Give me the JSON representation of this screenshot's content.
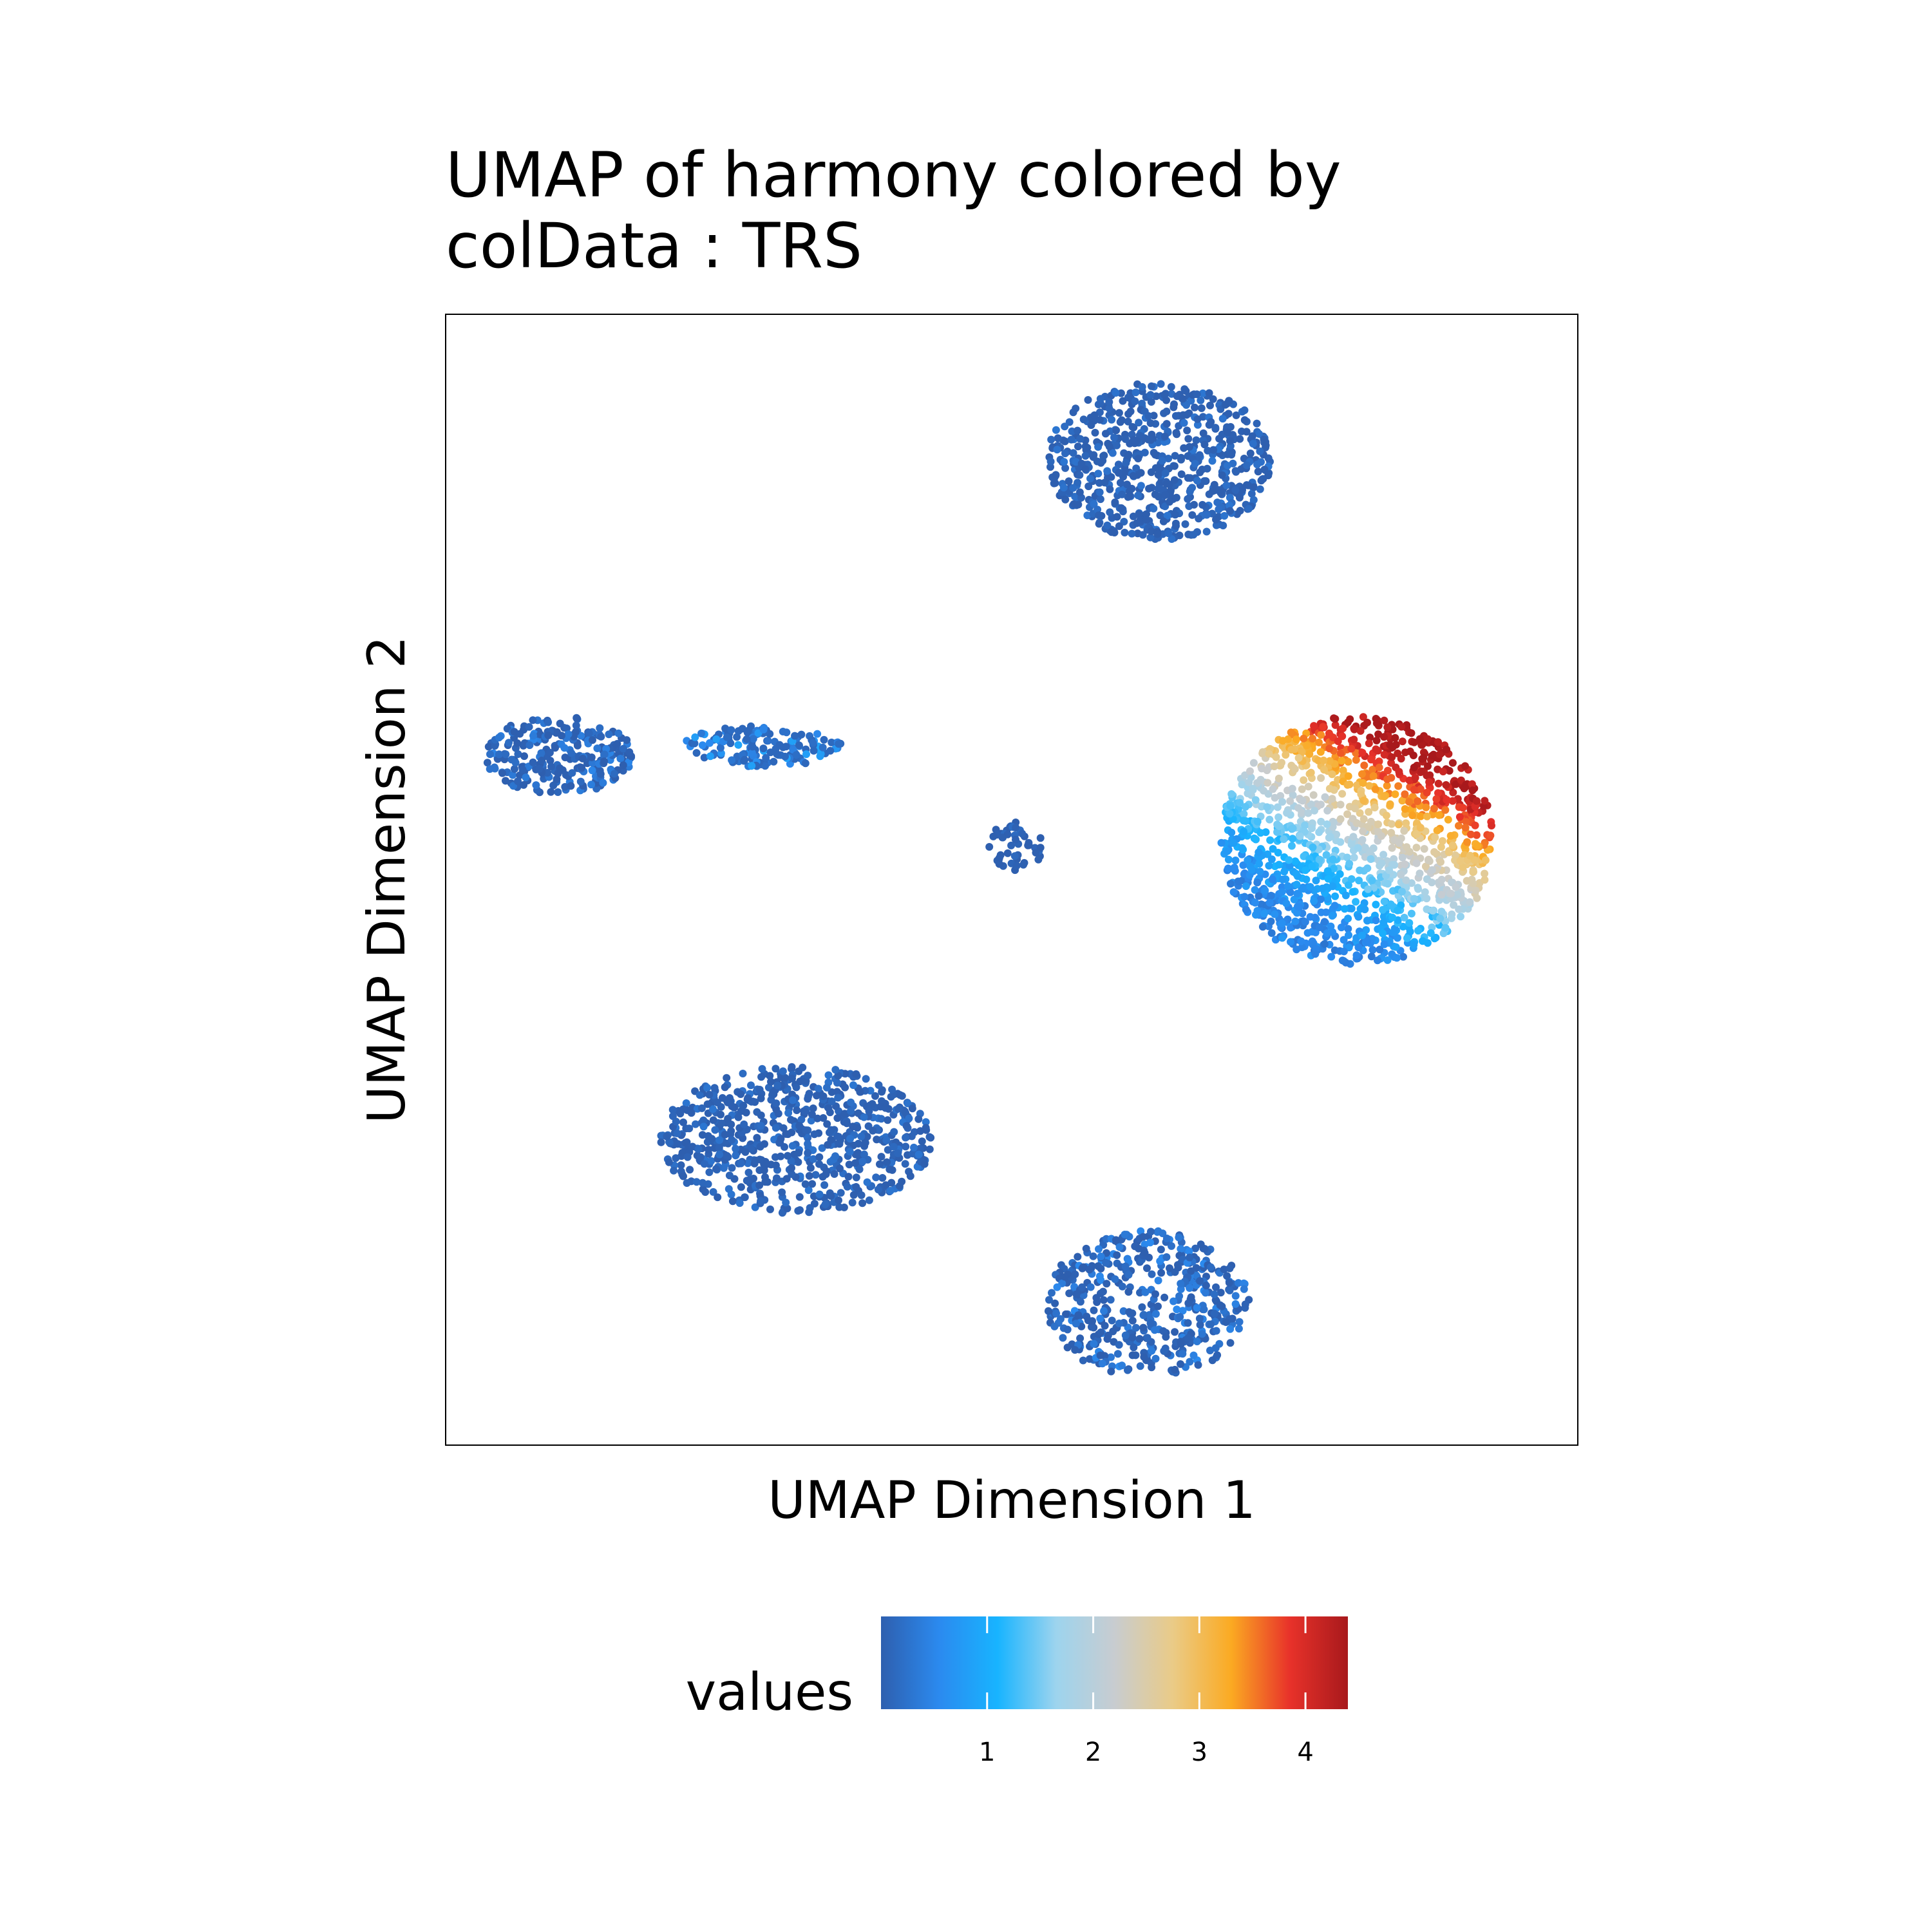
{
  "chart_data": {
    "type": "scatter",
    "title_lines": [
      "UMAP of harmony  colored by",
      "colData :  TRS"
    ],
    "xlabel": "UMAP Dimension 1",
    "ylabel": "UMAP Dimension 2",
    "xlim": [
      0,
      100
    ],
    "ylim": [
      0,
      100
    ],
    "grid": false,
    "axis_ticks": false,
    "legend": {
      "title": "values",
      "position": "bottom",
      "range": [
        0,
        4.4
      ],
      "ticks": [
        1,
        2,
        3,
        4
      ],
      "tick_labels": [
        "1",
        "2",
        "3",
        "4"
      ],
      "palette": [
        "#2E5FAF",
        "#2B8AEF",
        "#18B4FF",
        "#9DD4EE",
        "#C8CCD0",
        "#EACB87",
        "#FBAA22",
        "#E8322A",
        "#A8191C"
      ]
    },
    "clusters": [
      {
        "name": "top",
        "center": [
          63,
          87
        ],
        "radius": [
          10,
          7
        ],
        "value_range": [
          0,
          0.3
        ],
        "point_count": 650
      },
      {
        "name": "left",
        "center": [
          10,
          61
        ],
        "radius": [
          6.5,
          3.5
        ],
        "value_range": [
          0,
          0.5
        ],
        "point_count": 260
      },
      {
        "name": "left-tail",
        "center": [
          28,
          61.8
        ],
        "radius": [
          7,
          1.8
        ],
        "value_range": [
          0.1,
          0.9
        ],
        "point_count": 160
      },
      {
        "name": "small",
        "center": [
          50.5,
          53
        ],
        "radius": [
          2.5,
          2.2
        ],
        "value_range": [
          0,
          0.2
        ],
        "point_count": 50
      },
      {
        "name": "right",
        "center": [
          80.5,
          53.5
        ],
        "radius": [
          12,
          11
        ],
        "value_range": [
          0.5,
          4.4
        ],
        "point_count": 1400
      },
      {
        "name": "bottom-left",
        "center": [
          31,
          27
        ],
        "radius": [
          12,
          6.5
        ],
        "value_range": [
          0,
          0.3
        ],
        "point_count": 700
      },
      {
        "name": "bottom",
        "center": [
          62,
          12.5
        ],
        "radius": [
          9,
          6.5
        ],
        "value_range": [
          0,
          0.6
        ],
        "point_count": 480
      }
    ]
  }
}
